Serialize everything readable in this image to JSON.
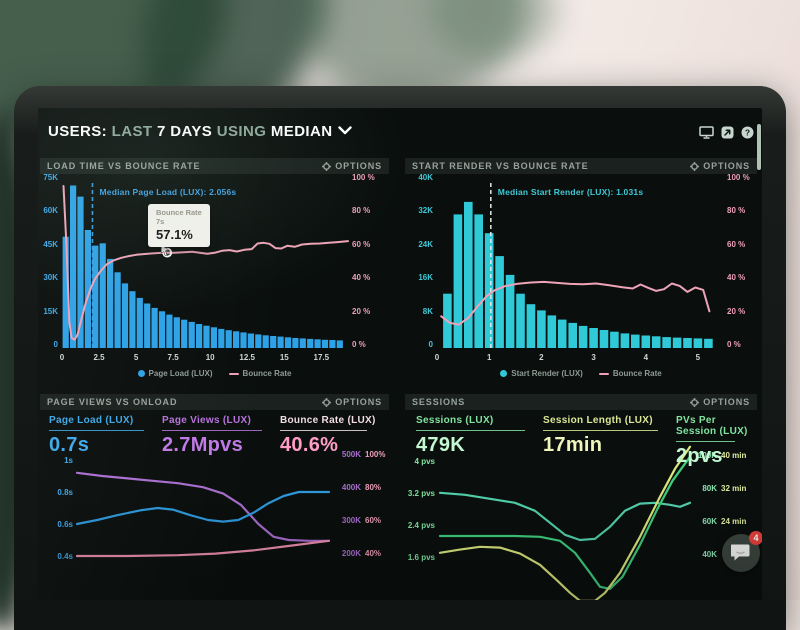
{
  "header": {
    "users": "USERS:",
    "last": "LAST",
    "days": "7 DAYS",
    "using": "USING",
    "median": "MEDIAN"
  },
  "chat": {
    "badge": "4"
  },
  "panels": [
    {
      "title": "LOAD TIME VS BOUNCE RATE",
      "options": "OPTIONS"
    },
    {
      "title": "START RENDER VS BOUNCE RATE",
      "options": "OPTIONS"
    },
    {
      "title": "PAGE VIEWS VS ONLOAD",
      "options": "OPTIONS",
      "metrics": [
        {
          "label": "Page Load (LUX)",
          "value": "0.7s",
          "label_color": "#3fa8e8",
          "value_color": "#3fa8e8"
        },
        {
          "label": "Page Views (LUX)",
          "value": "2.7Mpvs",
          "label_color": "#b873dd",
          "value_color": "#c07ae6"
        },
        {
          "label": "Bounce Rate (LUX)",
          "value": "40.6%",
          "label_color": "#f2dce6",
          "value_color": "#ff9dc6"
        }
      ]
    },
    {
      "title": "SESSIONS",
      "options": "OPTIONS",
      "metrics": [
        {
          "label": "Sessions (LUX)",
          "value": "479K",
          "label_color": "#82e2a0",
          "value_color": "#c4f8d2"
        },
        {
          "label": "Session Length (LUX)",
          "value": "17min",
          "label_color": "#dbe794",
          "value_color": "#f0f5bc"
        },
        {
          "label": "PVs Per Session (LUX)",
          "value": "2pvs",
          "label_color": "#82e2a0",
          "value_color": "#c4f8d2"
        }
      ]
    }
  ],
  "chart_data": [
    {
      "type": "bar-line",
      "title": "LOAD TIME VS BOUNCE RATE",
      "bar_color": "#2da2e6",
      "line_color": "#eea3b8",
      "ymax": 75,
      "xmax": 19.3,
      "bar_x0": 0.25,
      "bar_step": 0.5,
      "bar_w": 0.42,
      "yticks_left": [
        "75K",
        "60K",
        "45K",
        "30K",
        "15K",
        "0"
      ],
      "yticks_right": [
        "100 %",
        "80 %",
        "60 %",
        "40 %",
        "20 %",
        "0 %"
      ],
      "tick_color_left": "#3fa8e8",
      "tick_color_right": "#ef9fba",
      "xticks": {
        "values": [
          0,
          2.5,
          5,
          7.5,
          10,
          12.5,
          15,
          17.5
        ],
        "labels": [
          "0",
          "2.5",
          "5",
          "7.5",
          "10",
          "12.5",
          "15",
          "17.5"
        ]
      },
      "bars": [
        50,
        73,
        68,
        53,
        46,
        47,
        40,
        34,
        29,
        25.5,
        22.5,
        20,
        18,
        16.5,
        15,
        13.8,
        12.7,
        11.7,
        10.8,
        10,
        9.3,
        8.6,
        8,
        7.5,
        7,
        6.5,
        6.1,
        5.7,
        5.4,
        5.1,
        4.8,
        4.5,
        4.3,
        4.1,
        3.9,
        3.7,
        3.6,
        3.4
      ],
      "line": [
        [
          0.1,
          97
        ],
        [
          0.3,
          62
        ],
        [
          0.5,
          15
        ],
        [
          0.65,
          6
        ],
        [
          0.85,
          5
        ],
        [
          1.05,
          8
        ],
        [
          1.3,
          17
        ],
        [
          1.6,
          27
        ],
        [
          1.9,
          35
        ],
        [
          2.2,
          41
        ],
        [
          2.6,
          46
        ],
        [
          3,
          50
        ],
        [
          3.5,
          52.5
        ],
        [
          4,
          54
        ],
        [
          4.5,
          55
        ],
        [
          5,
          55.8
        ],
        [
          5.5,
          56.2
        ],
        [
          6,
          56.6
        ],
        [
          6.5,
          56.9
        ],
        [
          7.1,
          57.1
        ],
        [
          7.6,
          57
        ],
        [
          8.2,
          57.3
        ],
        [
          8.8,
          57.6
        ],
        [
          9.3,
          57
        ],
        [
          9.8,
          56.4
        ],
        [
          10.3,
          57
        ],
        [
          10.8,
          58.2
        ],
        [
          11.3,
          58.6
        ],
        [
          11.8,
          57.8
        ],
        [
          12.3,
          58.8
        ],
        [
          12.8,
          59.2
        ],
        [
          13.2,
          62.6
        ],
        [
          13.6,
          63
        ],
        [
          14,
          62.4
        ],
        [
          14.4,
          59.8
        ],
        [
          14.8,
          59.6
        ],
        [
          15.2,
          61.2
        ],
        [
          15.7,
          60.6
        ],
        [
          16.2,
          62
        ],
        [
          16.8,
          62.4
        ],
        [
          17.4,
          62.6
        ],
        [
          18,
          63
        ],
        [
          18.6,
          63.4
        ],
        [
          19.3,
          64
        ]
      ],
      "median": {
        "x": 2.056,
        "label": "Median Page Load (LUX): 2.056s",
        "color": "#3f9fe0",
        "line_color": "#3f9fe0"
      },
      "tooltip": {
        "title": "Bounce Rate",
        "time": "7s",
        "value": "57.1%",
        "x": 7.1,
        "y": 57.1
      },
      "legend": [
        {
          "type": "dot",
          "color": "#2da2e6",
          "label": "Page Load (LUX)"
        },
        {
          "type": "line",
          "color": "#ef9fba",
          "label": "Bounce Rate"
        }
      ]
    },
    {
      "type": "bar-line",
      "title": "START RENDER VS BOUNCE RATE",
      "bar_color": "#2fc9d8",
      "line_color": "#eea3b8",
      "ymax": 40,
      "xmax": 5.48,
      "bar_x0": 0.2,
      "bar_step": 0.2,
      "bar_w": 0.165,
      "yticks_left": [
        "40K",
        "32K",
        "24K",
        "16K",
        "8K",
        "0"
      ],
      "yticks_right": [
        "100 %",
        "80 %",
        "60 %",
        "40 %",
        "20 %",
        "0 %"
      ],
      "tick_color_left": "#3fc9d6",
      "tick_color_right": "#ef9fba",
      "xticks": {
        "values": [
          0,
          1,
          2,
          3,
          4,
          5
        ],
        "labels": [
          "0",
          "1",
          "2",
          "3",
          "4",
          "5"
        ]
      },
      "bars": [
        13,
        32,
        35,
        32,
        27.5,
        22,
        17.5,
        13,
        10.5,
        9,
        7.8,
        6.8,
        6,
        5.3,
        4.8,
        4.3,
        3.9,
        3.5,
        3.2,
        3,
        2.8,
        2.6,
        2.5,
        2.4,
        2.3,
        2.2
      ],
      "line": [
        [
          0.08,
          19
        ],
        [
          0.25,
          15
        ],
        [
          0.42,
          14
        ],
        [
          0.6,
          18
        ],
        [
          0.78,
          25
        ],
        [
          0.95,
          31
        ],
        [
          1.1,
          34.5
        ],
        [
          1.3,
          37
        ],
        [
          1.55,
          38.5
        ],
        [
          1.8,
          39.2
        ],
        [
          2.05,
          39.6
        ],
        [
          2.3,
          39
        ],
        [
          2.55,
          38.4
        ],
        [
          2.8,
          38.2
        ],
        [
          3.05,
          38.6
        ],
        [
          3.3,
          37.6
        ],
        [
          3.55,
          36.4
        ],
        [
          3.75,
          35.6
        ],
        [
          3.9,
          38
        ],
        [
          4.05,
          36
        ],
        [
          4.2,
          34.2
        ],
        [
          4.35,
          35.2
        ],
        [
          4.5,
          38.6
        ],
        [
          4.65,
          37.2
        ],
        [
          4.8,
          33.6
        ],
        [
          4.95,
          36.2
        ],
        [
          5.1,
          34.8
        ],
        [
          5.22,
          22
        ]
      ],
      "median": {
        "x": 1.031,
        "label": "Median Start Render (LUX): 1.031s",
        "color": "#3fc9d6",
        "line_color": "#dfe9e4"
      },
      "legend": [
        {
          "type": "dot",
          "color": "#2fc9d8",
          "label": "Start Render (LUX)"
        },
        {
          "type": "line",
          "color": "#ef9fba",
          "label": "Bounce Rate"
        }
      ]
    },
    {
      "type": "multiline",
      "title": "PAGE VIEWS VS ONLOAD",
      "ymax": 1.0375,
      "ymin": 0.1,
      "yticks_left": [
        {
          "v": 1.0,
          "label": "1s"
        },
        {
          "v": 0.8,
          "label": "0.8s"
        },
        {
          "v": 0.6,
          "label": "0.6s"
        },
        {
          "v": 0.4,
          "label": "0.4s"
        }
      ],
      "tick_color_left": "#3fa8e8",
      "right1": {
        "labels": [
          "500K",
          "400K",
          "300K",
          "200K"
        ],
        "color": "#a96fd0"
      },
      "right2": {
        "labels": [
          "100%",
          "80%",
          "60%",
          "40%"
        ],
        "color": "#ef9fba"
      },
      "series": [
        {
          "name": "Page Views",
          "color": "#a96fd0",
          "points": [
            [
              0,
              0.92
            ],
            [
              0.1,
              0.9
            ],
            [
              0.2,
              0.885
            ],
            [
              0.3,
              0.87
            ],
            [
              0.4,
              0.855
            ],
            [
              0.5,
              0.83
            ],
            [
              0.58,
              0.79
            ],
            [
              0.65,
              0.72
            ],
            [
              0.72,
              0.6
            ],
            [
              0.78,
              0.52
            ],
            [
              0.84,
              0.5
            ],
            [
              0.92,
              0.495
            ],
            [
              1,
              0.495
            ]
          ]
        },
        {
          "name": "Page Load",
          "color": "#2e9be0",
          "points": [
            [
              0,
              0.6
            ],
            [
              0.08,
              0.625
            ],
            [
              0.16,
              0.655
            ],
            [
              0.25,
              0.685
            ],
            [
              0.32,
              0.7
            ],
            [
              0.38,
              0.69
            ],
            [
              0.45,
              0.655
            ],
            [
              0.52,
              0.625
            ],
            [
              0.58,
              0.615
            ],
            [
              0.64,
              0.625
            ],
            [
              0.7,
              0.67
            ],
            [
              0.76,
              0.73
            ],
            [
              0.82,
              0.775
            ],
            [
              0.88,
              0.8
            ],
            [
              1,
              0.8
            ]
          ]
        },
        {
          "name": "Bounce Rate",
          "color": "#ee8fae",
          "points": [
            [
              0,
              0.4
            ],
            [
              0.2,
              0.4
            ],
            [
              0.4,
              0.405
            ],
            [
              0.55,
              0.415
            ],
            [
              0.7,
              0.435
            ],
            [
              0.85,
              0.465
            ],
            [
              1,
              0.495
            ]
          ]
        }
      ]
    },
    {
      "type": "multiline",
      "title": "SESSIONS",
      "ymax": 4.17,
      "ymin": 0.42,
      "yticks_left": [
        {
          "v": 4,
          "label": "4 pvs"
        },
        {
          "v": 3.2,
          "label": "3.2 pvs"
        },
        {
          "v": 2.4,
          "label": "2.4 pvs"
        },
        {
          "v": 1.6,
          "label": "1.6 pvs"
        }
      ],
      "tick_color_left": "#82e2a0",
      "right1": {
        "labels": [
          "100K",
          "80K",
          "60K",
          "40K"
        ],
        "color": "#8ee8b8"
      },
      "right2": {
        "labels": [
          "40 min",
          "32 min",
          "24 min",
          ""
        ],
        "color": "#e3eda0"
      },
      "series": [
        {
          "name": "Sessions",
          "color": "#53d3ad",
          "points": [
            [
              0,
              3.2
            ],
            [
              0.1,
              3.15
            ],
            [
              0.2,
              3.05
            ],
            [
              0.3,
              2.95
            ],
            [
              0.38,
              2.75
            ],
            [
              0.45,
              2.4
            ],
            [
              0.5,
              2.15
            ],
            [
              0.56,
              2.02
            ],
            [
              0.62,
              2.05
            ],
            [
              0.68,
              2.35
            ],
            [
              0.74,
              2.75
            ],
            [
              0.8,
              2.93
            ],
            [
              0.86,
              2.95
            ],
            [
              0.92,
              2.9
            ],
            [
              0.96,
              2.85
            ],
            [
              1,
              2.95
            ]
          ]
        },
        {
          "name": "PVs Per Session",
          "color": "#3fcf7f",
          "points": [
            [
              0,
              2.12
            ],
            [
              0.3,
              2.12
            ],
            [
              0.4,
              2.1
            ],
            [
              0.48,
              2.0
            ],
            [
              0.54,
              1.7
            ],
            [
              0.6,
              1.2
            ],
            [
              0.64,
              0.85
            ],
            [
              0.68,
              0.8
            ],
            [
              0.73,
              1.1
            ],
            [
              0.8,
              1.9
            ],
            [
              0.87,
              2.8
            ],
            [
              0.93,
              3.5
            ],
            [
              1,
              4.1
            ]
          ]
        },
        {
          "name": "Session Length",
          "color": "#dde87e",
          "points": [
            [
              0,
              1.7
            ],
            [
              0.08,
              1.78
            ],
            [
              0.16,
              1.85
            ],
            [
              0.24,
              1.83
            ],
            [
              0.32,
              1.68
            ],
            [
              0.4,
              1.4
            ],
            [
              0.47,
              1.0
            ],
            [
              0.52,
              0.7
            ],
            [
              0.56,
              0.5
            ],
            [
              0.62,
              0.5
            ],
            [
              0.66,
              0.7
            ],
            [
              0.72,
              1.2
            ],
            [
              0.8,
              2.1
            ],
            [
              0.88,
              3.1
            ],
            [
              0.94,
              3.8
            ],
            [
              1,
              4.35
            ]
          ]
        }
      ]
    }
  ]
}
